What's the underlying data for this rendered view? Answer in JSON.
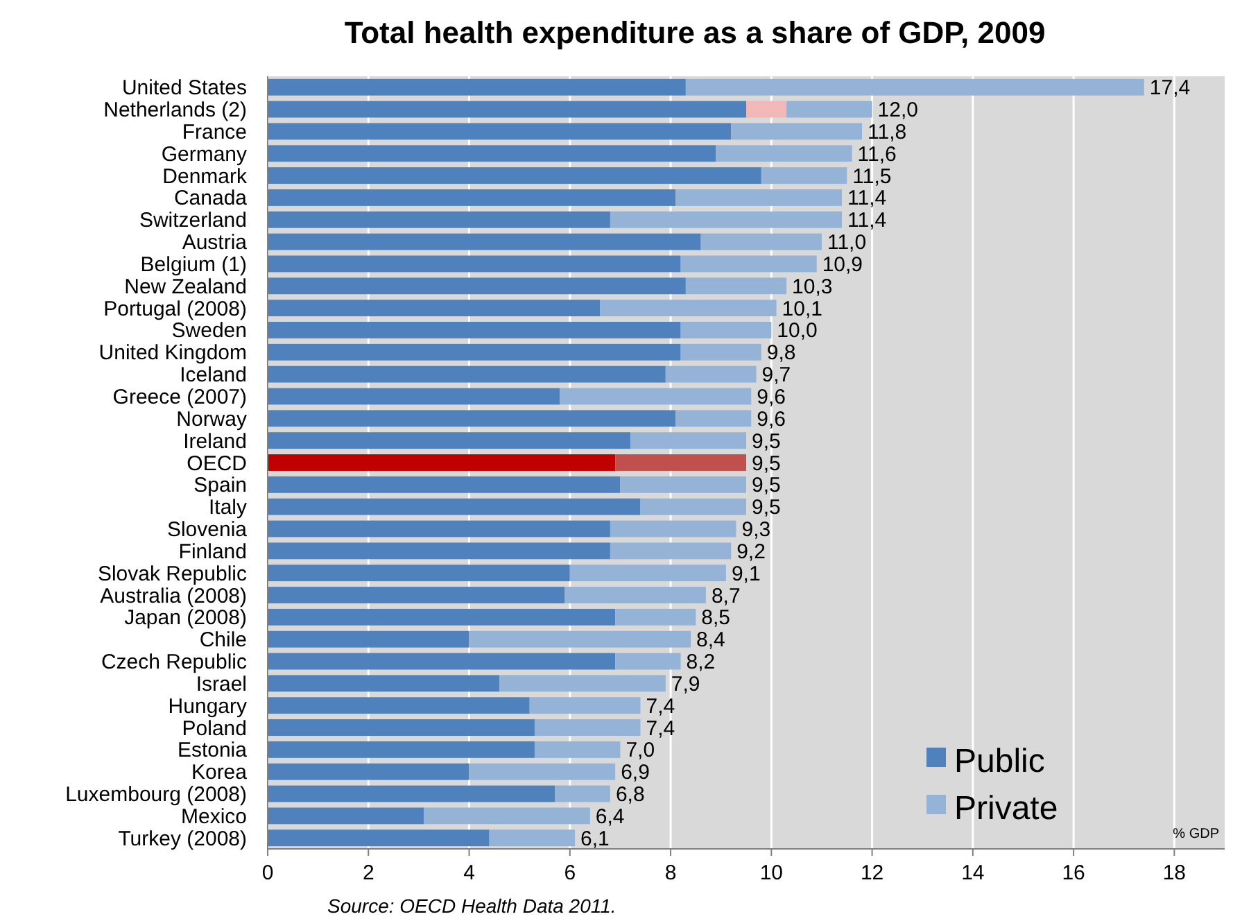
{
  "chart_data": {
    "type": "bar",
    "orientation": "horizontal",
    "stacked": true,
    "title": "Total health expenditure as a share of GDP, 2009",
    "xlabel": "% GDP",
    "categories": [
      "United States",
      "Netherlands (2)",
      "France",
      "Germany",
      "Denmark",
      "Canada",
      "Switzerland",
      "Austria",
      "Belgium (1)",
      "New Zealand",
      "Portugal (2008)",
      "Sweden",
      "United Kingdom",
      "Iceland",
      "Greece (2007)",
      "Norway",
      "Ireland",
      "OECD",
      "Spain",
      "Italy",
      "Slovenia",
      "Finland",
      "Slovak Republic",
      "Australia (2008)",
      "Japan (2008)",
      "Chile",
      "Czech Republic",
      "Israel",
      "Hungary",
      "Poland",
      "Estonia",
      "Korea",
      "Luxembourg (2008)",
      "Mexico",
      "Turkey (2008)"
    ],
    "series": [
      {
        "name": "Public",
        "color": "#4f81bd",
        "colors": [
          "#4f81bd",
          "#4f81bd",
          "#4f81bd",
          "#4f81bd",
          "#4f81bd",
          "#4f81bd",
          "#4f81bd",
          "#4f81bd",
          "#4f81bd",
          "#4f81bd",
          "#4f81bd",
          "#4f81bd",
          "#4f81bd",
          "#4f81bd",
          "#4f81bd",
          "#4f81bd",
          "#4f81bd",
          "#c00000",
          "#4f81bd",
          "#4f81bd",
          "#4f81bd",
          "#4f81bd",
          "#4f81bd",
          "#4f81bd",
          "#4f81bd",
          "#4f81bd",
          "#4f81bd",
          "#4f81bd",
          "#4f81bd",
          "#4f81bd",
          "#4f81bd",
          "#4f81bd",
          "#4f81bd",
          "#4f81bd",
          "#4f81bd"
        ],
        "values": [
          8.3,
          9.5,
          9.2,
          8.9,
          9.8,
          8.1,
          6.8,
          8.6,
          8.2,
          8.3,
          6.6,
          8.2,
          8.2,
          7.9,
          5.8,
          8.1,
          7.2,
          6.9,
          7.0,
          7.4,
          6.8,
          6.8,
          6.0,
          5.9,
          6.9,
          4.0,
          6.9,
          4.6,
          5.2,
          5.3,
          5.3,
          4.0,
          5.7,
          3.1,
          4.4
        ]
      },
      {
        "color": "#f2b8b8",
        "values": [
          null,
          0.8,
          null,
          null,
          null,
          null,
          null,
          null,
          null,
          null,
          null,
          null,
          null,
          null,
          null,
          null,
          null,
          null,
          null,
          null,
          null,
          null,
          null,
          null,
          null,
          null,
          null,
          null,
          null,
          null,
          null,
          null,
          null,
          null,
          null
        ]
      },
      {
        "name": "Private",
        "color": "#95b3d7",
        "colors": [
          "#95b3d7",
          "#95b3d7",
          "#95b3d7",
          "#95b3d7",
          "#95b3d7",
          "#95b3d7",
          "#95b3d7",
          "#95b3d7",
          "#95b3d7",
          "#95b3d7",
          "#95b3d7",
          "#95b3d7",
          "#95b3d7",
          "#95b3d7",
          "#95b3d7",
          "#95b3d7",
          "#95b3d7",
          "#c0504d",
          "#95b3d7",
          "#95b3d7",
          "#95b3d7",
          "#95b3d7",
          "#95b3d7",
          "#95b3d7",
          "#95b3d7",
          "#95b3d7",
          "#95b3d7",
          "#95b3d7",
          "#95b3d7",
          "#95b3d7",
          "#95b3d7",
          "#95b3d7",
          "#95b3d7",
          "#95b3d7",
          "#95b3d7"
        ],
        "values": [
          9.1,
          1.7,
          2.6,
          2.7,
          1.7,
          3.3,
          4.6,
          2.4,
          2.7,
          2.0,
          3.5,
          1.8,
          1.6,
          1.8,
          3.8,
          1.5,
          2.3,
          2.6,
          2.5,
          2.1,
          2.5,
          2.4,
          3.1,
          2.8,
          1.6,
          4.4,
          1.3,
          3.3,
          2.2,
          2.1,
          1.7,
          2.9,
          1.1,
          3.3,
          1.7
        ]
      }
    ],
    "totals": [
      "17,4",
      "12,0",
      "11,8",
      "11,6",
      "11,5",
      "11,4",
      "11,4",
      "11,0",
      "10,9",
      "10,3",
      "10,1",
      "10,0",
      "9,8",
      "9,7",
      "9,6",
      "9,6",
      "9,5",
      "9,5",
      "9,5",
      "9,5",
      "9,3",
      "9,2",
      "9,1",
      "8,7",
      "8,5",
      "8,4",
      "8,2",
      "7,9",
      "7,4",
      "7,4",
      "7,0",
      "6,9",
      "6,8",
      "6,4",
      "6,1"
    ],
    "xlim": [
      0,
      19
    ],
    "xticks": [
      0,
      2,
      4,
      6,
      8,
      10,
      12,
      14,
      16,
      18
    ],
    "grid": "x",
    "legend": "bottom right",
    "annotations": [
      "Source: OECD Health Data 2011."
    ]
  }
}
